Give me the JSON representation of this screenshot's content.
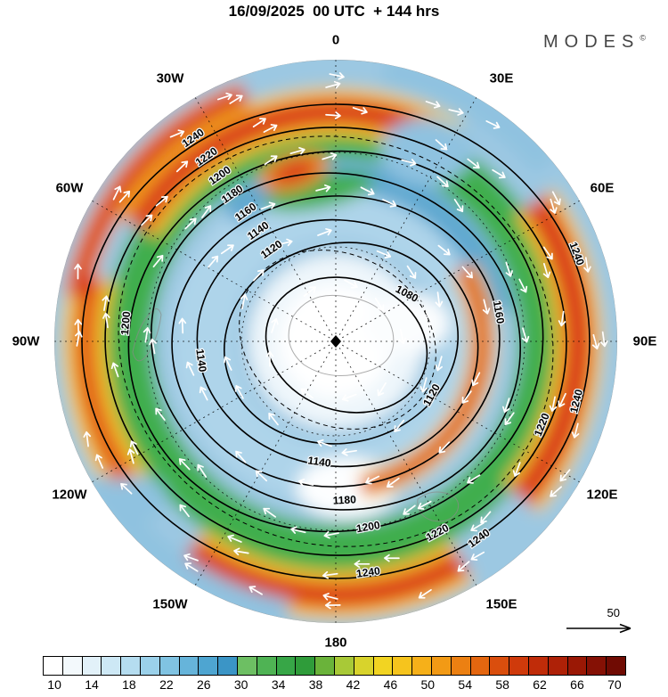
{
  "header": {
    "title": "16/09/2025  00 UTC  + 144 hrs",
    "brand": "MODES",
    "brand_symbol": "©"
  },
  "map": {
    "direction_labels": [
      "0",
      "30E",
      "60E",
      "90E",
      "120E",
      "150E",
      "180",
      "150W",
      "120W",
      "90W",
      "60W",
      "30W"
    ],
    "contour_values": [
      "1080",
      "1120",
      "1140",
      "1160",
      "1180",
      "1200",
      "1220",
      "1240"
    ],
    "reference_arrow_label": "50",
    "shading_colors": {
      "base_blue": "#9cc8e2",
      "center_white": "#ffffff",
      "green_ring": "#3fae4e",
      "yellow_jet": "#f3cf2a",
      "orange_jet": "#f08a1d",
      "red_jet": "#d8341a",
      "arrow_color": "#ffffff",
      "contour_color": "#000000"
    }
  },
  "colorbar": {
    "ticks": [
      "10",
      "14",
      "18",
      "22",
      "26",
      "30",
      "34",
      "38",
      "42",
      "46",
      "50",
      "54",
      "58",
      "62",
      "66",
      "70"
    ],
    "colors": [
      "#ffffff",
      "#f3f9fc",
      "#e2f1f9",
      "#cde8f5",
      "#b5ddf0",
      "#9bd1ea",
      "#80c3e2",
      "#66b4da",
      "#4ea5d1",
      "#3b95c6",
      "#6dbf63",
      "#4fb354",
      "#37a647",
      "#2f9c3a",
      "#6ab33a",
      "#a8c937",
      "#d8d32c",
      "#f2d422",
      "#f6c41d",
      "#f6b019",
      "#f29a15",
      "#ec8012",
      "#e4660f",
      "#da4e0d",
      "#cf3a0b",
      "#c02c09",
      "#ae2107",
      "#9a1805",
      "#851105",
      "#700b03"
    ]
  }
}
